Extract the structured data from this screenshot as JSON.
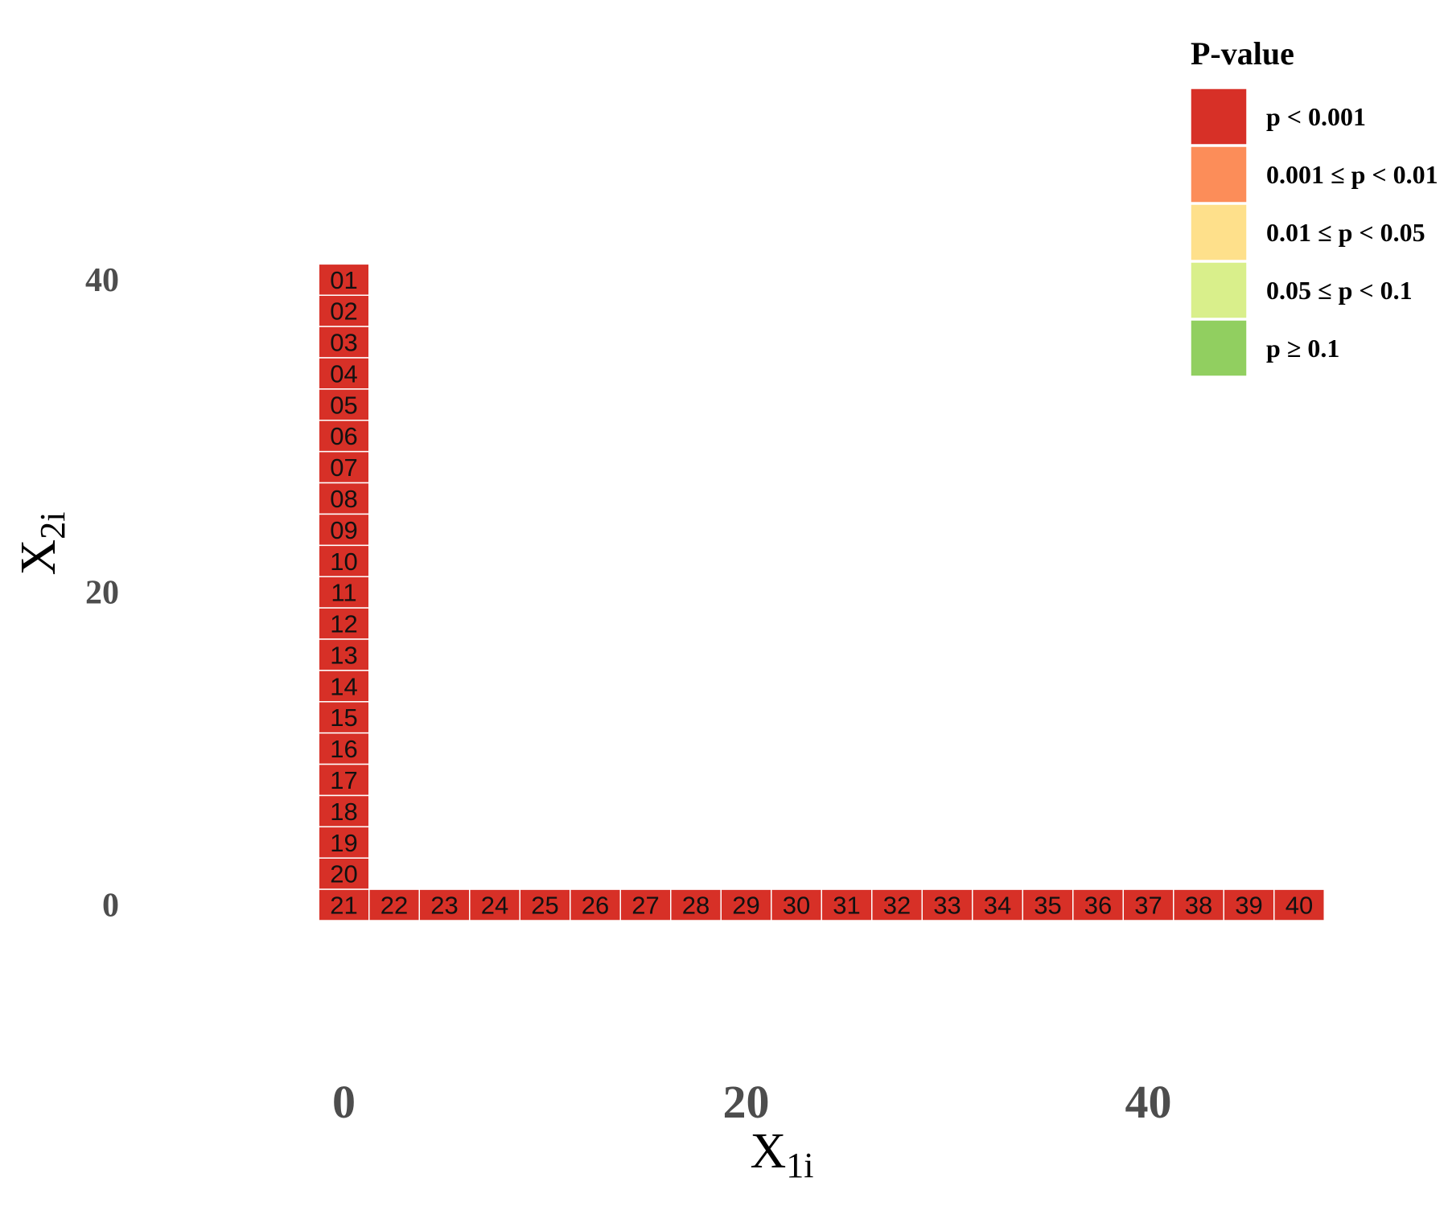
{
  "chart_data": {
    "type": "heatmap",
    "xlabel": "X",
    "xlabel_sub": "1i",
    "ylabel": "X",
    "ylabel_sub": "2i",
    "xlim": [
      -1.5,
      48.5
    ],
    "ylim": [
      -10,
      53
    ],
    "x_ticks": [
      0,
      20,
      40
    ],
    "y_ticks": [
      0,
      20,
      40
    ],
    "tile_size": [
      2.5,
      2
    ],
    "points": [
      {
        "label": "01",
        "x": 0,
        "y": 40,
        "p_class": 0
      },
      {
        "label": "02",
        "x": 0,
        "y": 38,
        "p_class": 0
      },
      {
        "label": "03",
        "x": 0,
        "y": 36,
        "p_class": 0
      },
      {
        "label": "04",
        "x": 0,
        "y": 34,
        "p_class": 0
      },
      {
        "label": "05",
        "x": 0,
        "y": 32,
        "p_class": 0
      },
      {
        "label": "06",
        "x": 0,
        "y": 30,
        "p_class": 0
      },
      {
        "label": "07",
        "x": 0,
        "y": 28,
        "p_class": 0
      },
      {
        "label": "08",
        "x": 0,
        "y": 26,
        "p_class": 0
      },
      {
        "label": "09",
        "x": 0,
        "y": 24,
        "p_class": 0
      },
      {
        "label": "10",
        "x": 0,
        "y": 22,
        "p_class": 0
      },
      {
        "label": "11",
        "x": 0,
        "y": 20,
        "p_class": 0
      },
      {
        "label": "12",
        "x": 0,
        "y": 18,
        "p_class": 0
      },
      {
        "label": "13",
        "x": 0,
        "y": 16,
        "p_class": 0
      },
      {
        "label": "14",
        "x": 0,
        "y": 14,
        "p_class": 0
      },
      {
        "label": "15",
        "x": 0,
        "y": 12,
        "p_class": 0
      },
      {
        "label": "16",
        "x": 0,
        "y": 10,
        "p_class": 0
      },
      {
        "label": "17",
        "x": 0,
        "y": 8,
        "p_class": 0
      },
      {
        "label": "18",
        "x": 0,
        "y": 6,
        "p_class": 0
      },
      {
        "label": "19",
        "x": 0,
        "y": 4,
        "p_class": 0
      },
      {
        "label": "20",
        "x": 0,
        "y": 2,
        "p_class": 0
      },
      {
        "label": "21",
        "x": 0,
        "y": 0,
        "p_class": 0
      },
      {
        "label": "22",
        "x": 2.5,
        "y": 0,
        "p_class": 0
      },
      {
        "label": "23",
        "x": 5,
        "y": 0,
        "p_class": 0
      },
      {
        "label": "24",
        "x": 7.5,
        "y": 0,
        "p_class": 0
      },
      {
        "label": "25",
        "x": 10,
        "y": 0,
        "p_class": 0
      },
      {
        "label": "26",
        "x": 12.5,
        "y": 0,
        "p_class": 0
      },
      {
        "label": "27",
        "x": 15,
        "y": 0,
        "p_class": 0
      },
      {
        "label": "28",
        "x": 17.5,
        "y": 0,
        "p_class": 0
      },
      {
        "label": "29",
        "x": 20,
        "y": 0,
        "p_class": 0
      },
      {
        "label": "30",
        "x": 22.5,
        "y": 0,
        "p_class": 0
      },
      {
        "label": "31",
        "x": 25,
        "y": 0,
        "p_class": 0
      },
      {
        "label": "32",
        "x": 27.5,
        "y": 0,
        "p_class": 0
      },
      {
        "label": "33",
        "x": 30,
        "y": 0,
        "p_class": 0
      },
      {
        "label": "34",
        "x": 32.5,
        "y": 0,
        "p_class": 0
      },
      {
        "label": "35",
        "x": 35,
        "y": 0,
        "p_class": 0
      },
      {
        "label": "36",
        "x": 37.5,
        "y": 0,
        "p_class": 0
      },
      {
        "label": "37",
        "x": 40,
        "y": 0,
        "p_class": 0
      },
      {
        "label": "38",
        "x": 42.5,
        "y": 0,
        "p_class": 0
      },
      {
        "label": "39",
        "x": 45,
        "y": 0,
        "p_class": 0
      },
      {
        "label": "40",
        "x": 47.5,
        "y": 0,
        "p_class": 0
      }
    ],
    "legend": {
      "title": "P-value",
      "position": "top-right",
      "items": [
        {
          "label": "p < 0.001",
          "color": "#d73027"
        },
        {
          "label": "0.001 ≤ p < 0.01",
          "color": "#fc8d59"
        },
        {
          "label": "0.01 ≤ p < 0.05",
          "color": "#fee08b"
        },
        {
          "label": "0.05 ≤ p < 0.1",
          "color": "#d9ef8b"
        },
        {
          "label": "p ≥ 0.1",
          "color": "#91cf60"
        }
      ]
    },
    "grid": false
  }
}
